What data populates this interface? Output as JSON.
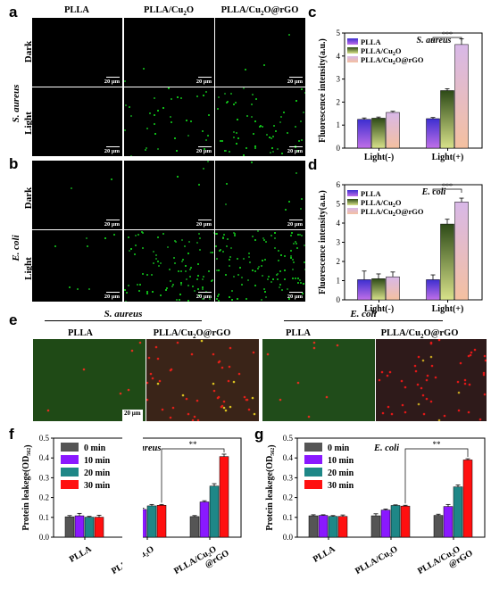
{
  "labels": {
    "a": "a",
    "b": "b",
    "c": "c",
    "d": "d",
    "e": "e",
    "f": "f",
    "g": "g"
  },
  "micro": {
    "columns": [
      "PLLA",
      "PLLA/Cu",
      "PLLA/Cu",
      "O",
      "O@rGO"
    ],
    "col1": "PLLA",
    "col2_main": "PLLA/Cu",
    "col2_sub": "2",
    "col2_end": "O",
    "col3_main": "PLLA/Cu",
    "col3_sub": "2",
    "col3_end": "O@rGO",
    "species_a": "S. aureus",
    "species_b": "E. coli",
    "row_dark": "Dark",
    "row_light": "Light",
    "scale": "20 μm"
  },
  "live_dead": {
    "group1": "S. aureus",
    "group2": "E. coli",
    "c1": "PLLA",
    "c2": "PLLA/Cu",
    "c2_sub": "2",
    "c2_end": "O@rGO",
    "c3": "PLLA",
    "c4": "PLLA/Cu",
    "c4_sub": "2",
    "c4_end": "O@rGO",
    "scale": "20 μm"
  },
  "chart_data": [
    {
      "panel": "c",
      "type": "bar",
      "ylabel": "Fluorescence intensity(a.u.)",
      "ylim": [
        0,
        5
      ],
      "yticks": [
        0,
        1,
        2,
        3,
        4,
        5
      ],
      "annotation": "S. aureus",
      "significance": "***",
      "categories": [
        "Light(-)",
        "Light(+)"
      ],
      "series": [
        {
          "name": "PLLA",
          "values": [
            1.25,
            1.28
          ],
          "errors": [
            0.06,
            0.05
          ]
        },
        {
          "name": "PLLA/Cu2O",
          "values": [
            1.3,
            2.5
          ],
          "errors": [
            0.05,
            0.08
          ]
        },
        {
          "name": "PLLA/Cu2O@rGO",
          "values": [
            1.55,
            4.5
          ],
          "errors": [
            0.05,
            0.25
          ]
        }
      ]
    },
    {
      "panel": "d",
      "type": "bar",
      "ylabel": "Fluorescence intensity(a.u.)",
      "ylim": [
        0,
        6
      ],
      "yticks": [
        0,
        1,
        2,
        3,
        4,
        5,
        6
      ],
      "annotation": "E. coli",
      "significance": "***",
      "categories": [
        "Light(-)",
        "Light(+)"
      ],
      "series": [
        {
          "name": "PLLA",
          "values": [
            1.05,
            1.05
          ],
          "errors": [
            0.45,
            0.25
          ]
        },
        {
          "name": "PLLA/Cu2O",
          "values": [
            1.1,
            3.95
          ],
          "errors": [
            0.25,
            0.25
          ]
        },
        {
          "name": "PLLA/Cu2O@rGO",
          "values": [
            1.2,
            5.1
          ],
          "errors": [
            0.25,
            0.2
          ]
        }
      ]
    },
    {
      "panel": "f",
      "type": "bar",
      "ylabel": "Protein leakege(OD562)",
      "ylim": [
        0,
        0.5
      ],
      "yticks": [
        0.0,
        0.1,
        0.2,
        0.3,
        0.4,
        0.5
      ],
      "annotation": "S. aureus",
      "significance": "**",
      "categories": [
        "PLLA",
        "PLLA/Cu2O",
        "PLLA/Cu2O @rGO"
      ],
      "series": [
        {
          "name": "0 min",
          "values": [
            0.103,
            0.107,
            0.104
          ],
          "errors": [
            0.006,
            0.01,
            0.005
          ]
        },
        {
          "name": "10 min",
          "values": [
            0.108,
            0.14,
            0.178
          ],
          "errors": [
            0.012,
            0.006,
            0.006
          ]
        },
        {
          "name": "20 min",
          "values": [
            0.101,
            0.158,
            0.258
          ],
          "errors": [
            0.004,
            0.007,
            0.012
          ]
        },
        {
          "name": "30 min",
          "values": [
            0.101,
            0.161,
            0.407
          ],
          "errors": [
            0.01,
            0.004,
            0.012
          ]
        }
      ]
    },
    {
      "panel": "g",
      "type": "bar",
      "ylabel": "Protein leakege(OD562)",
      "ylim": [
        0,
        0.5
      ],
      "yticks": [
        0.0,
        0.1,
        0.2,
        0.3,
        0.4,
        0.5
      ],
      "annotation": "E. coli",
      "significance": "**",
      "categories": [
        "PLLA",
        "PLLA/Cu2O",
        "PLLA/Cu2O @rGO"
      ],
      "series": [
        {
          "name": "0 min",
          "values": [
            0.108,
            0.108,
            0.11
          ],
          "errors": [
            0.005,
            0.01,
            0.006
          ]
        },
        {
          "name": "10 min",
          "values": [
            0.11,
            0.137,
            0.155
          ],
          "errors": [
            0.003,
            0.005,
            0.01
          ]
        },
        {
          "name": "20 min",
          "values": [
            0.105,
            0.16,
            0.254
          ],
          "errors": [
            0.004,
            0.003,
            0.01
          ]
        },
        {
          "name": "30 min",
          "values": [
            0.105,
            0.157,
            0.39
          ],
          "errors": [
            0.007,
            0.004,
            0.006
          ]
        }
      ]
    }
  ],
  "colors": {
    "fluor_plla": [
      "#3d2fd0",
      "#c06fe8"
    ],
    "fluor_cu": [
      "#2d4a17",
      "#d8e28a"
    ],
    "fluor_rgo": [
      "#d8b8e8",
      "#f4c0a0"
    ],
    "t0": "#555555",
    "t10": "#8a19ff",
    "t20": "#1e8787",
    "t30": "#ff1010"
  }
}
